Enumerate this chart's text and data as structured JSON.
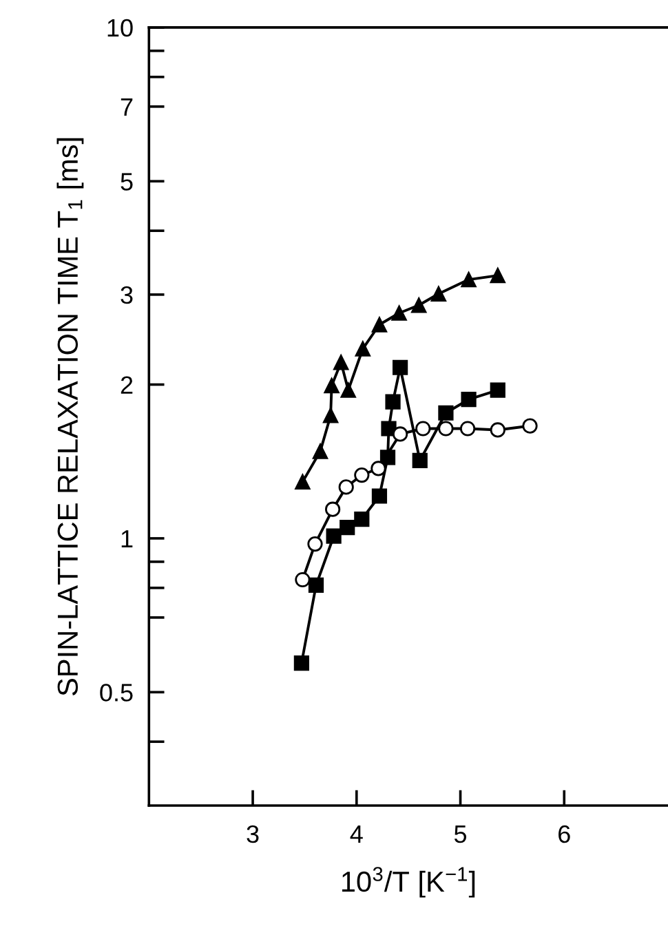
{
  "chart_data": {
    "type": "line",
    "xlabel": "10$^{3}$/T [K$^{−1}$]",
    "ylabel": "SPIN-LATTICE RELAXATION TIME T$_{1}$ [ms]",
    "log": "y",
    "xlim": [
      2,
      7
    ],
    "xticks": [
      3,
      4,
      5,
      6
    ],
    "ylim": [
      0.3,
      10
    ],
    "yticks": [
      {
        "value": 0.4,
        "label": null
      },
      0.5,
      {
        "value": 0.7,
        "label": null
      },
      {
        "value": 0.8,
        "label": null
      },
      {
        "value": 0.9,
        "label": null
      },
      1,
      2,
      3,
      {
        "value": 4,
        "label": null
      },
      5,
      7,
      {
        "value": 8,
        "label": null
      },
      {
        "value": 9,
        "label": null
      },
      10
    ],
    "grid": false,
    "legend": false,
    "line_style": "solid",
    "series": [
      {
        "color": "#000000",
        "marker": "triangle",
        "x": [
          3.48,
          3.65,
          3.75,
          3.76,
          3.85,
          3.92,
          4.06,
          4.22,
          4.41,
          4.6,
          4.79,
          5.08,
          5.36
        ],
        "values": [
          1.29,
          1.48,
          1.74,
          1.99,
          2.21,
          1.95,
          2.35,
          2.62,
          2.76,
          2.86,
          3.01,
          3.21,
          3.27
        ]
      },
      {
        "color": "#000000",
        "marker": "square",
        "x": [
          3.47,
          3.61,
          3.78,
          3.91,
          4.05,
          4.22,
          4.3,
          4.31,
          4.35,
          4.42,
          4.61,
          4.86,
          5.08,
          5.36
        ],
        "values": [
          0.57,
          0.81,
          1.01,
          1.05,
          1.09,
          1.21,
          1.44,
          1.64,
          1.85,
          2.16,
          1.42,
          1.76,
          1.87,
          1.95
        ]
      },
      {
        "color": "#000000",
        "marker": "circle",
        "x": [
          3.48,
          3.6,
          3.77,
          3.9,
          4.05,
          4.21,
          4.42,
          4.64,
          4.86,
          5.07,
          5.36,
          5.67
        ],
        "values": [
          0.83,
          0.975,
          1.14,
          1.26,
          1.33,
          1.37,
          1.6,
          1.64,
          1.64,
          1.64,
          1.63,
          1.66
        ]
      }
    ]
  }
}
